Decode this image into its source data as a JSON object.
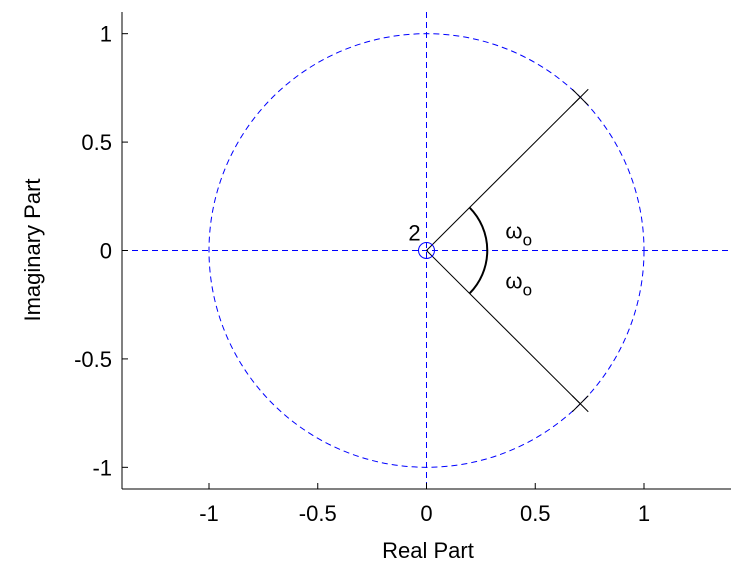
{
  "chart_data": {
    "type": "scatter",
    "title": "",
    "xlabel": "Real Part",
    "ylabel": "Imaginary Part",
    "xlim": [
      -1.4,
      1.4
    ],
    "ylim": [
      -1.1,
      1.1
    ],
    "xticks": [
      -1,
      -0.5,
      0,
      0.5,
      1
    ],
    "xtick_labels": [
      "-1",
      "-0.5",
      "0",
      "0.5",
      "1"
    ],
    "yticks": [
      -1,
      -0.5,
      0,
      0.5,
      1
    ],
    "ytick_labels": [
      "-1",
      "-0.5",
      "0",
      "0.5",
      "1"
    ],
    "grid": false,
    "box": true,
    "unit_circle": {
      "center": [
        0,
        0
      ],
      "radius": 1,
      "style": "dashed",
      "color": "#0000ff"
    },
    "reference_axes": {
      "x": 0,
      "y": 0,
      "style": "dashed",
      "color": "#0000ff"
    },
    "zeros": [
      {
        "x": 0,
        "y": 0,
        "multiplicity": 2,
        "marker": "o",
        "color": "#0000ff"
      }
    ],
    "poles": [
      {
        "x": 0.707,
        "y": 0.707,
        "marker": "x",
        "color": "#000000"
      },
      {
        "x": 0.707,
        "y": -0.707,
        "marker": "x",
        "color": "#000000"
      }
    ],
    "annotations": {
      "zero_multiplicity": "2",
      "angle_symbol": "ω",
      "angle_subscript": "o",
      "angle_arc_radius": 0.28,
      "angle_deg": 45
    }
  }
}
